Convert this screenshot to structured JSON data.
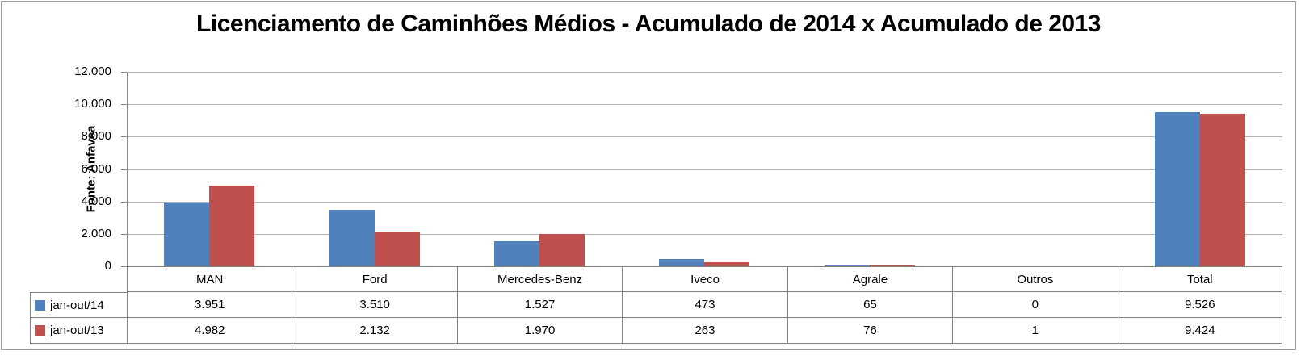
{
  "title": "Licenciamento de Caminhões Médios - Acumulado de 2014 x Acumulado de 2013",
  "source_label": "Fonte: Anfavea",
  "colors": {
    "series_2014": "#4F81BD",
    "series_2013": "#C0504D",
    "gridline": "#B2B2B2",
    "axis": "#8A8A8A",
    "table_border": "#808080",
    "frame_border": "#9B9B9B"
  },
  "chart_data": {
    "type": "bar",
    "title": "Licenciamento de Caminhões Médios - Acumulado de 2014 x Acumulado de 2013",
    "categories": [
      "MAN",
      "Ford",
      "Mercedes-Benz",
      "Iveco",
      "Agrale",
      "Outros",
      "Total"
    ],
    "series": [
      {
        "name": "jan-out/14",
        "color": "#4F81BD",
        "values": [
          3951,
          3510,
          1527,
          473,
          65,
          0,
          9526
        ],
        "display": [
          "3.951",
          "3.510",
          "1.527",
          "473",
          "65",
          "0",
          "9.526"
        ]
      },
      {
        "name": "jan-out/13",
        "color": "#C0504D",
        "values": [
          4982,
          2132,
          1970,
          263,
          76,
          1,
          9424
        ],
        "display": [
          "4.982",
          "2.132",
          "1.970",
          "263",
          "76",
          "1",
          "9.424"
        ]
      }
    ],
    "xlabel": "",
    "ylabel": "",
    "ylim": [
      0,
      12000
    ],
    "ytick_step": 2000,
    "ytick_labels": [
      "12.000",
      "10.000",
      "8.000",
      "6.000",
      "4.000",
      "2.000",
      "0"
    ],
    "grid": true,
    "legend_position": "data-table",
    "source": "Fonte: Anfavea"
  }
}
